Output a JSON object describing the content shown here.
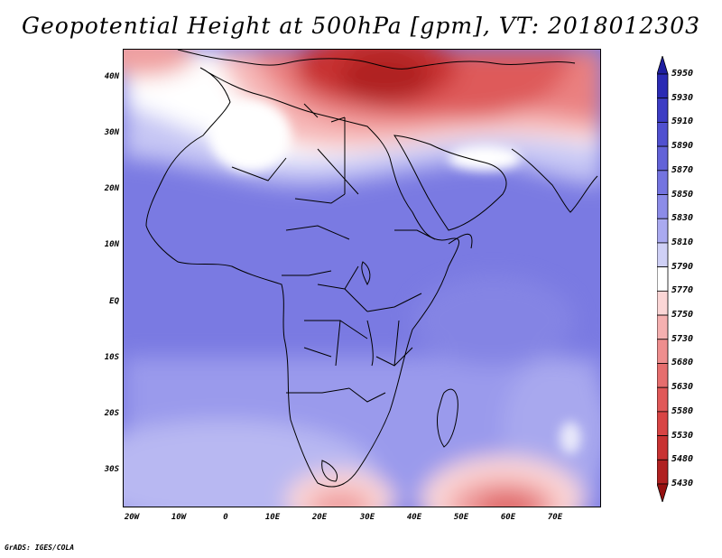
{
  "title": "Geopotential Height at 500hPa [gpm], VT: 2018012303",
  "footer": "GrADS: IGES/COLA",
  "map": {
    "lat_labels": [
      "40N",
      "30N",
      "20N",
      "10N",
      "EQ",
      "10S",
      "20S",
      "30S"
    ],
    "lon_labels": [
      "20W",
      "10W",
      "0",
      "10E",
      "20E",
      "30E",
      "40E",
      "50E",
      "60E",
      "70E"
    ]
  },
  "colorbar": {
    "levels": [
      "5950",
      "5930",
      "5910",
      "5890",
      "5870",
      "5850",
      "5830",
      "5810",
      "5790",
      "5770",
      "5750",
      "5730",
      "5680",
      "5630",
      "5580",
      "5530",
      "5480",
      "5430"
    ],
    "colors": [
      "#1e1ea0",
      "#2a2ab4",
      "#3c3cc4",
      "#5050d0",
      "#6262d8",
      "#7474e0",
      "#8c8ce8",
      "#aaaaf0",
      "#cfd0f6",
      "#ffffff",
      "#fbd6d6",
      "#f5b0b0",
      "#ee8e8e",
      "#e66e6e",
      "#e05858",
      "#d84444",
      "#c83232",
      "#b02020",
      "#961010"
    ]
  }
}
